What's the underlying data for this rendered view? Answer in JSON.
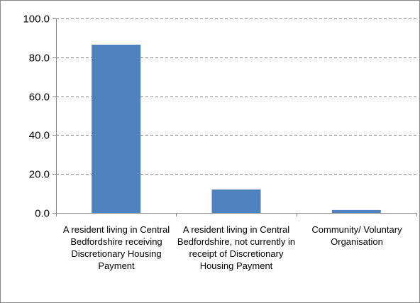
{
  "chart_data": {
    "type": "bar",
    "categories": [
      "A resident living in Central Bedfordshire receiving Discretionary Housing Payment",
      "A resident living in Central Bedfordshire, not currently in receipt of Discretionary Housing Payment",
      "Community/ Voluntary Organisation"
    ],
    "values": [
      86.5,
      12.0,
      1.5
    ],
    "yticks": [
      "0.0",
      "20.0",
      "40.0",
      "60.0",
      "80.0",
      "100.0"
    ],
    "ylim": [
      0,
      100
    ],
    "grid": true,
    "legend": "none",
    "bar_color": "#4f81bd",
    "title": "",
    "xlabel": "",
    "ylabel": ""
  }
}
